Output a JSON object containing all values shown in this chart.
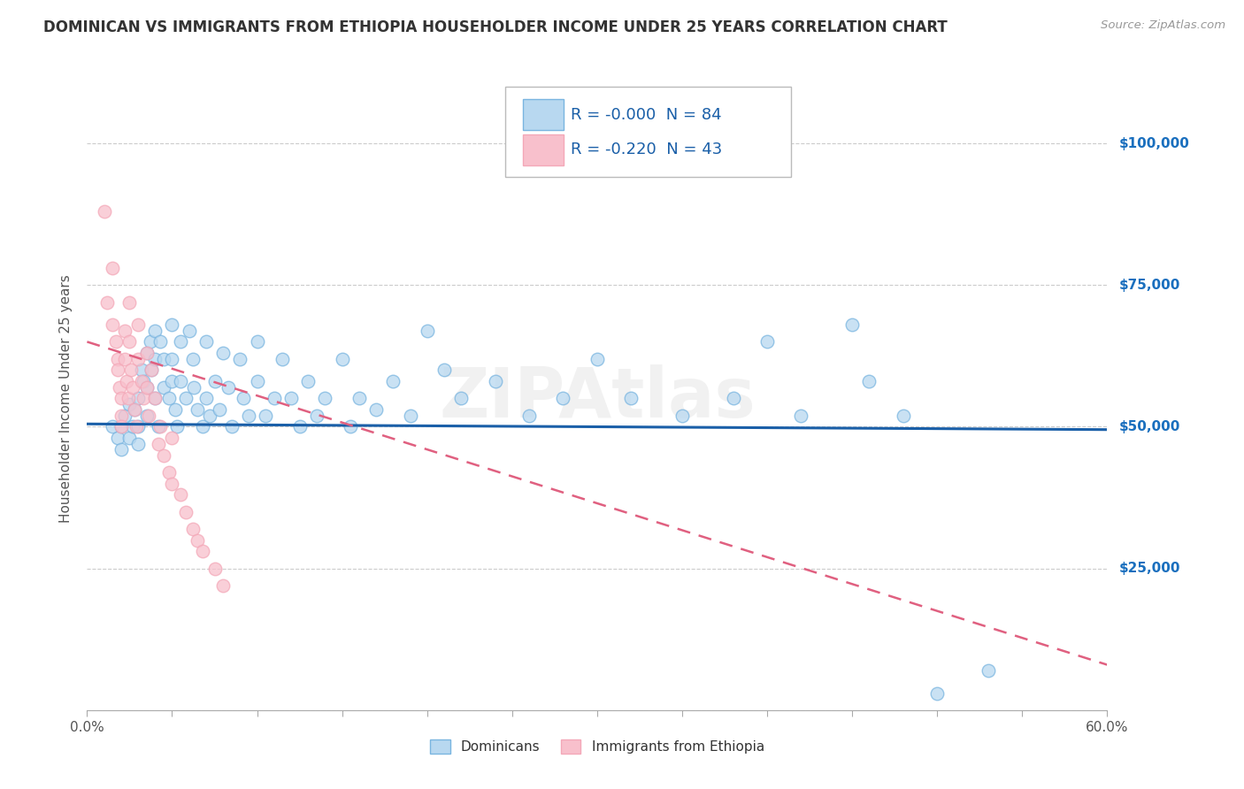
{
  "title": "DOMINICAN VS IMMIGRANTS FROM ETHIOPIA HOUSEHOLDER INCOME UNDER 25 YEARS CORRELATION CHART",
  "source": "Source: ZipAtlas.com",
  "ylabel": "Householder Income Under 25 years",
  "legend_label_dominicans": "Dominicans",
  "legend_label_ethiopia": "Immigrants from Ethiopia",
  "watermark": "ZIPAtlas",
  "xlim": [
    0.0,
    0.6
  ],
  "ylim": [
    0,
    110000
  ],
  "yticks": [
    0,
    25000,
    50000,
    75000,
    100000
  ],
  "ytick_labels": [
    "",
    "$25,000",
    "$50,000",
    "$75,000",
    "$100,000"
  ],
  "blue_color": "#7ab5e0",
  "pink_color": "#f4a8b8",
  "blue_fill": "#b8d8f0",
  "pink_fill": "#f8c0cc",
  "blue_line_color": "#1a5fa8",
  "pink_line_color": "#e06080",
  "legend_text_color": "#1a5fa8",
  "bg_color": "#ffffff",
  "grid_color": "#cccccc",
  "title_color": "#333333",
  "axis_label_color": "#555555",
  "right_label_color": "#1a6fbe",
  "blue_scatter": [
    [
      0.015,
      50000
    ],
    [
      0.018,
      48000
    ],
    [
      0.02,
      46000
    ],
    [
      0.02,
      50000
    ],
    [
      0.022,
      52000
    ],
    [
      0.025,
      54000
    ],
    [
      0.025,
      48000
    ],
    [
      0.027,
      50000
    ],
    [
      0.028,
      53000
    ],
    [
      0.03,
      55000
    ],
    [
      0.03,
      50000
    ],
    [
      0.03,
      47000
    ],
    [
      0.032,
      60000
    ],
    [
      0.033,
      58000
    ],
    [
      0.035,
      63000
    ],
    [
      0.035,
      57000
    ],
    [
      0.035,
      52000
    ],
    [
      0.037,
      65000
    ],
    [
      0.038,
      60000
    ],
    [
      0.04,
      67000
    ],
    [
      0.04,
      62000
    ],
    [
      0.04,
      55000
    ],
    [
      0.042,
      50000
    ],
    [
      0.043,
      65000
    ],
    [
      0.045,
      62000
    ],
    [
      0.045,
      57000
    ],
    [
      0.048,
      55000
    ],
    [
      0.05,
      68000
    ],
    [
      0.05,
      62000
    ],
    [
      0.05,
      58000
    ],
    [
      0.052,
      53000
    ],
    [
      0.053,
      50000
    ],
    [
      0.055,
      65000
    ],
    [
      0.055,
      58000
    ],
    [
      0.058,
      55000
    ],
    [
      0.06,
      67000
    ],
    [
      0.062,
      62000
    ],
    [
      0.063,
      57000
    ],
    [
      0.065,
      53000
    ],
    [
      0.068,
      50000
    ],
    [
      0.07,
      65000
    ],
    [
      0.07,
      55000
    ],
    [
      0.072,
      52000
    ],
    [
      0.075,
      58000
    ],
    [
      0.078,
      53000
    ],
    [
      0.08,
      63000
    ],
    [
      0.083,
      57000
    ],
    [
      0.085,
      50000
    ],
    [
      0.09,
      62000
    ],
    [
      0.092,
      55000
    ],
    [
      0.095,
      52000
    ],
    [
      0.1,
      65000
    ],
    [
      0.1,
      58000
    ],
    [
      0.105,
      52000
    ],
    [
      0.11,
      55000
    ],
    [
      0.115,
      62000
    ],
    [
      0.12,
      55000
    ],
    [
      0.125,
      50000
    ],
    [
      0.13,
      58000
    ],
    [
      0.135,
      52000
    ],
    [
      0.14,
      55000
    ],
    [
      0.15,
      62000
    ],
    [
      0.155,
      50000
    ],
    [
      0.16,
      55000
    ],
    [
      0.17,
      53000
    ],
    [
      0.18,
      58000
    ],
    [
      0.19,
      52000
    ],
    [
      0.2,
      67000
    ],
    [
      0.21,
      60000
    ],
    [
      0.22,
      55000
    ],
    [
      0.24,
      58000
    ],
    [
      0.26,
      52000
    ],
    [
      0.28,
      55000
    ],
    [
      0.3,
      62000
    ],
    [
      0.32,
      55000
    ],
    [
      0.35,
      52000
    ],
    [
      0.38,
      55000
    ],
    [
      0.4,
      65000
    ],
    [
      0.42,
      52000
    ],
    [
      0.45,
      68000
    ],
    [
      0.46,
      58000
    ],
    [
      0.48,
      52000
    ],
    [
      0.5,
      3000
    ],
    [
      0.53,
      7000
    ]
  ],
  "pink_scatter": [
    [
      0.01,
      88000
    ],
    [
      0.012,
      72000
    ],
    [
      0.015,
      78000
    ],
    [
      0.015,
      68000
    ],
    [
      0.017,
      65000
    ],
    [
      0.018,
      62000
    ],
    [
      0.018,
      60000
    ],
    [
      0.019,
      57000
    ],
    [
      0.02,
      55000
    ],
    [
      0.02,
      52000
    ],
    [
      0.02,
      50000
    ],
    [
      0.022,
      67000
    ],
    [
      0.022,
      62000
    ],
    [
      0.023,
      58000
    ],
    [
      0.024,
      55000
    ],
    [
      0.025,
      72000
    ],
    [
      0.025,
      65000
    ],
    [
      0.026,
      60000
    ],
    [
      0.027,
      57000
    ],
    [
      0.028,
      53000
    ],
    [
      0.029,
      50000
    ],
    [
      0.03,
      68000
    ],
    [
      0.03,
      62000
    ],
    [
      0.032,
      58000
    ],
    [
      0.033,
      55000
    ],
    [
      0.035,
      63000
    ],
    [
      0.035,
      57000
    ],
    [
      0.036,
      52000
    ],
    [
      0.038,
      60000
    ],
    [
      0.04,
      55000
    ],
    [
      0.042,
      47000
    ],
    [
      0.043,
      50000
    ],
    [
      0.045,
      45000
    ],
    [
      0.048,
      42000
    ],
    [
      0.05,
      48000
    ],
    [
      0.05,
      40000
    ],
    [
      0.055,
      38000
    ],
    [
      0.058,
      35000
    ],
    [
      0.062,
      32000
    ],
    [
      0.065,
      30000
    ],
    [
      0.068,
      28000
    ],
    [
      0.075,
      25000
    ],
    [
      0.08,
      22000
    ]
  ],
  "blue_trendline_x": [
    0.0,
    0.6
  ],
  "blue_trendline_y": [
    50500,
    49500
  ],
  "pink_trendline_x": [
    0.0,
    0.6
  ],
  "pink_trendline_y": [
    65000,
    8000
  ]
}
